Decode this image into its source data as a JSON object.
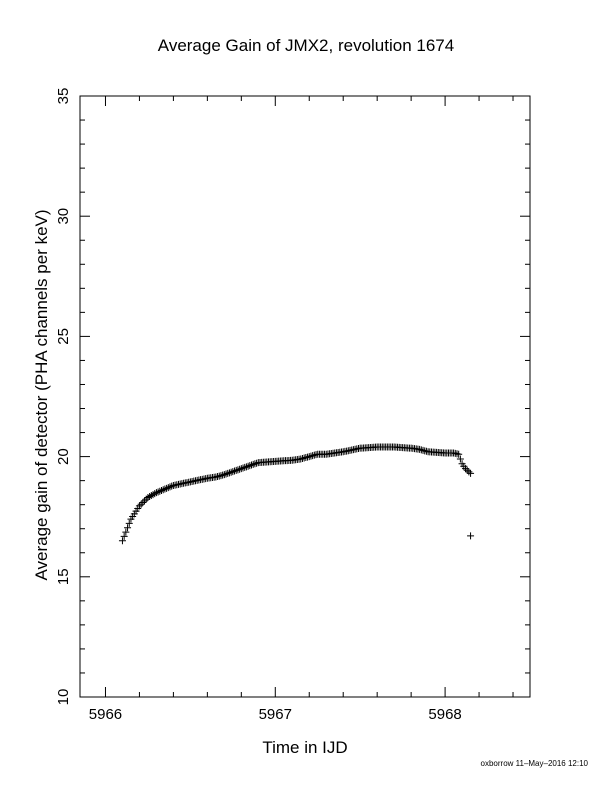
{
  "chart_data": {
    "type": "scatter",
    "marker": "+",
    "title": "Average Gain of JMX2, revolution 1674",
    "xlabel": "Time in IJD",
    "ylabel": "Average gain of detector (PHA channels per keV)",
    "xlim": [
      5965.85,
      5968.5
    ],
    "ylim": [
      10,
      35
    ],
    "xticks": [
      5966,
      5967,
      5968
    ],
    "yticks": [
      10,
      15,
      20,
      25,
      30,
      35
    ],
    "grid": false,
    "series": [
      {
        "x": [
          5966.1,
          5966.15,
          5966.2,
          5966.25,
          5966.3,
          5966.35,
          5966.4,
          5966.5,
          5966.6,
          5966.65,
          5966.7,
          5966.8,
          5966.9,
          5967.0,
          5967.1,
          5967.15,
          5967.2,
          5967.25,
          5967.3,
          5967.35,
          5967.4,
          5967.5,
          5967.6,
          5967.7,
          5967.8,
          5967.85,
          5967.9,
          5968.0,
          5968.05,
          5968.08,
          5968.1,
          5968.12,
          5968.15
        ],
        "y": [
          16.5,
          17.4,
          17.95,
          18.3,
          18.5,
          18.65,
          18.8,
          18.95,
          19.1,
          19.15,
          19.25,
          19.5,
          19.75,
          19.8,
          19.85,
          19.9,
          20.0,
          20.1,
          20.1,
          20.15,
          20.2,
          20.35,
          20.4,
          20.4,
          20.35,
          20.3,
          20.2,
          20.15,
          20.15,
          20.1,
          19.7,
          19.5,
          19.3
        ]
      },
      {
        "x": [
          5968.15
        ],
        "y": [
          16.7
        ]
      }
    ]
  },
  "footer": "oxborrow 11–May–2016 12:10"
}
